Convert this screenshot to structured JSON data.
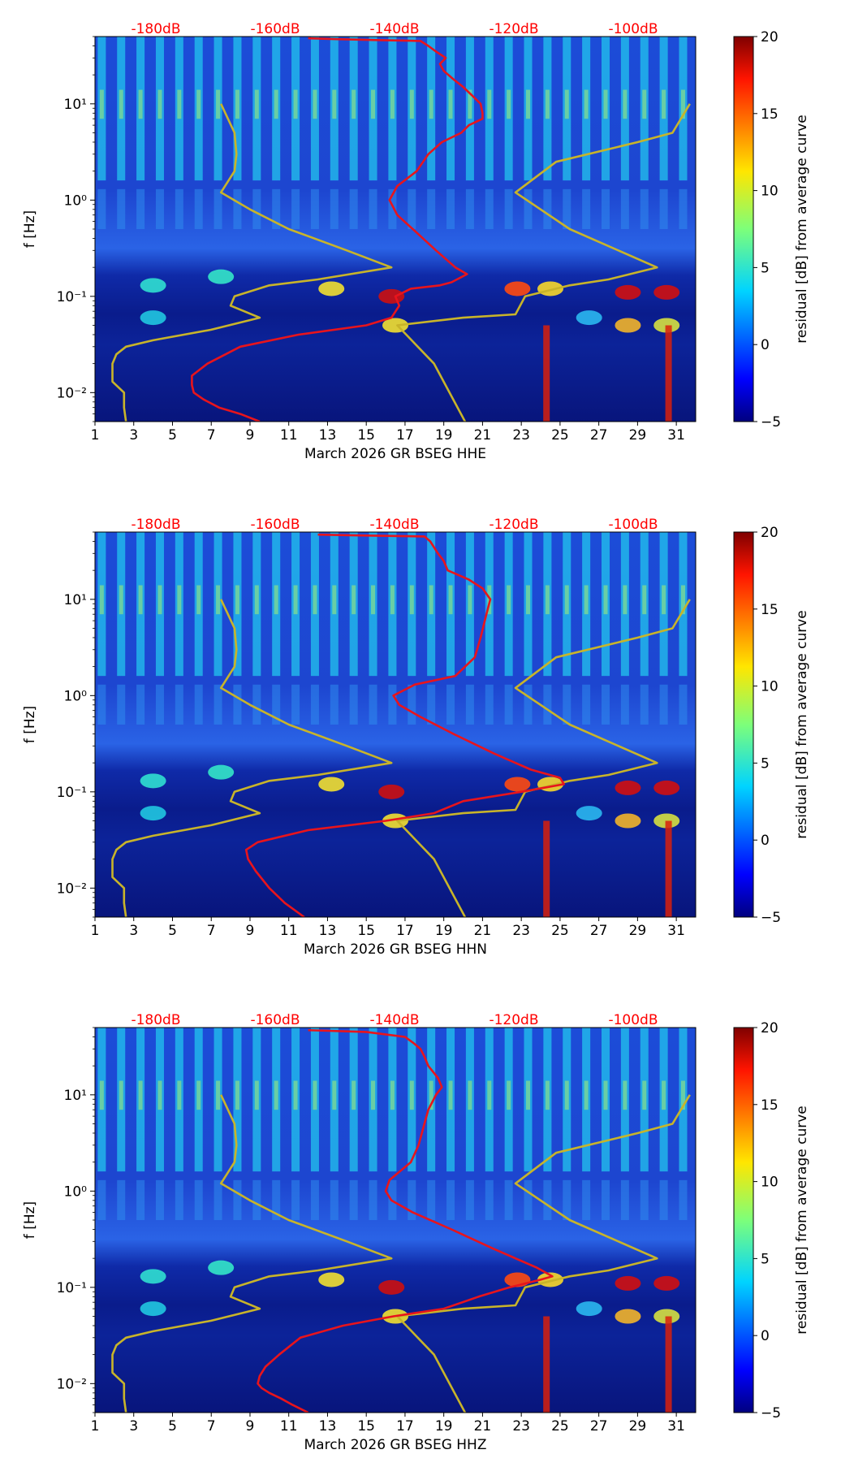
{
  "chart_data": [
    {
      "type": "heatmap",
      "channel_label": "March 2026 GR BSEG  HHE",
      "ylabel": "f [Hz]",
      "x_ticks": [
        "1",
        "3",
        "5",
        "7",
        "9",
        "11",
        "13",
        "15",
        "17",
        "19",
        "21",
        "23",
        "25",
        "27",
        "29",
        "31"
      ],
      "x_range": [
        1,
        32
      ],
      "y_ticks": [
        {
          "label": "10⁻²",
          "value": 0.01
        },
        {
          "label": "10⁻¹",
          "value": 0.1
        },
        {
          "label": "10⁰",
          "value": 1
        },
        {
          "label": "10¹",
          "value": 10
        }
      ],
      "y_range": [
        0.005,
        50
      ],
      "top_db_labels": [
        "-180dB",
        "-160dB",
        "-140dB",
        "-120dB",
        "-100dB"
      ],
      "colorbar": {
        "label": "residual [dB] from average curve",
        "ticks": [
          "−5",
          "0",
          "5",
          "10",
          "15",
          "20"
        ],
        "range": [
          -5,
          20
        ]
      },
      "red_curve": {
        "points": [
          [
            9.5,
            0.005
          ],
          [
            8.5,
            0.006
          ],
          [
            7.4,
            0.007
          ],
          [
            6.6,
            0.0085
          ],
          [
            6.1,
            0.01
          ],
          [
            6.0,
            0.012
          ],
          [
            6.0,
            0.015
          ],
          [
            6.8,
            0.02
          ],
          [
            8.5,
            0.03
          ],
          [
            11.5,
            0.04
          ],
          [
            15,
            0.05
          ],
          [
            16.3,
            0.06
          ],
          [
            16.7,
            0.08
          ],
          [
            16.5,
            0.1
          ],
          [
            17.3,
            0.12
          ],
          [
            18.8,
            0.13
          ],
          [
            19.4,
            0.14
          ],
          [
            20.2,
            0.17
          ],
          [
            19.6,
            0.2
          ],
          [
            18.6,
            0.3
          ],
          [
            17.4,
            0.5
          ],
          [
            16.6,
            0.7
          ],
          [
            16.2,
            1
          ],
          [
            16.6,
            1.4
          ],
          [
            17.6,
            2
          ],
          [
            18.2,
            3
          ],
          [
            18.9,
            4
          ],
          [
            19.9,
            5
          ],
          [
            20.3,
            6
          ],
          [
            21.0,
            7
          ],
          [
            21.0,
            8
          ],
          [
            20.9,
            10
          ],
          [
            20.5,
            12
          ],
          [
            20.0,
            15
          ],
          [
            19.5,
            18
          ],
          [
            19.0,
            22
          ],
          [
            18.8,
            26
          ],
          [
            19.1,
            30
          ],
          [
            18.6,
            35
          ],
          [
            18.2,
            40
          ],
          [
            17.8,
            45
          ],
          [
            15.5,
            46
          ],
          [
            13.5,
            47
          ],
          [
            12.0,
            48
          ]
        ]
      },
      "yellow_curves": [
        {
          "points": [
            [
              2.6,
              0.005
            ],
            [
              2.5,
              0.007
            ],
            [
              2.5,
              0.01
            ],
            [
              1.9,
              0.013
            ],
            [
              1.9,
              0.02
            ],
            [
              2.1,
              0.025
            ],
            [
              2.6,
              0.03
            ],
            [
              4,
              0.035
            ],
            [
              7,
              0.045
            ],
            [
              9.5,
              0.06
            ],
            [
              8.0,
              0.08
            ],
            [
              8.2,
              0.1
            ],
            [
              10.0,
              0.13
            ],
            [
              12.5,
              0.15
            ],
            [
              16.3,
              0.2
            ],
            [
              14,
              0.3
            ],
            [
              11,
              0.5
            ],
            [
              9,
              0.8
            ],
            [
              7.5,
              1.2
            ],
            [
              8.2,
              2
            ],
            [
              8.3,
              3
            ],
            [
              8.2,
              5
            ],
            [
              7.5,
              10
            ]
          ]
        },
        {
          "points": [
            [
              20.1,
              0.005
            ],
            [
              18.5,
              0.02
            ],
            [
              16.6,
              0.05
            ],
            [
              20,
              0.06
            ],
            [
              22.7,
              0.065
            ],
            [
              23.2,
              0.1
            ],
            [
              25.5,
              0.13
            ],
            [
              27.5,
              0.15
            ],
            [
              30,
              0.2
            ],
            [
              25.5,
              0.5
            ],
            [
              22.7,
              1.2
            ],
            [
              24.8,
              2.5
            ],
            [
              29,
              4
            ],
            [
              30.8,
              5
            ],
            [
              31.7,
              10
            ]
          ]
        }
      ]
    },
    {
      "type": "heatmap",
      "channel_label": "March 2026 GR BSEG  HHN",
      "ylabel": "f [Hz]",
      "x_ticks": [
        "1",
        "3",
        "5",
        "7",
        "9",
        "11",
        "13",
        "15",
        "17",
        "19",
        "21",
        "23",
        "25",
        "27",
        "29",
        "31"
      ],
      "x_range": [
        1,
        32
      ],
      "y_ticks": [
        {
          "label": "10⁻²",
          "value": 0.01
        },
        {
          "label": "10⁻¹",
          "value": 0.1
        },
        {
          "label": "10⁰",
          "value": 1
        },
        {
          "label": "10¹",
          "value": 10
        }
      ],
      "y_range": [
        0.005,
        50
      ],
      "top_db_labels": [
        "-180dB",
        "-160dB",
        "-140dB",
        "-120dB",
        "-100dB"
      ],
      "colorbar": {
        "label": "residual [dB] from average curve",
        "ticks": [
          "−5",
          "0",
          "5",
          "10",
          "15",
          "20"
        ],
        "range": [
          -5,
          20
        ]
      },
      "red_curve": {
        "points": [
          [
            11.8,
            0.005
          ],
          [
            10.8,
            0.007
          ],
          [
            10.0,
            0.01
          ],
          [
            9.3,
            0.015
          ],
          [
            8.9,
            0.02
          ],
          [
            8.8,
            0.025
          ],
          [
            9.4,
            0.03
          ],
          [
            12,
            0.04
          ],
          [
            16,
            0.05
          ],
          [
            18.5,
            0.06
          ],
          [
            20,
            0.08
          ],
          [
            23.0,
            0.1
          ],
          [
            25.2,
            0.12
          ],
          [
            25.0,
            0.14
          ],
          [
            23.5,
            0.17
          ],
          [
            21.6,
            0.25
          ],
          [
            19.5,
            0.4
          ],
          [
            17.8,
            0.6
          ],
          [
            16.7,
            0.8
          ],
          [
            16.4,
            1
          ],
          [
            17.5,
            1.3
          ],
          [
            19.6,
            1.6
          ],
          [
            20.6,
            2.5
          ],
          [
            20.9,
            4
          ],
          [
            21.2,
            7
          ],
          [
            21.4,
            10
          ],
          [
            21.0,
            13
          ],
          [
            20.3,
            16
          ],
          [
            19.2,
            20
          ],
          [
            19.0,
            25
          ],
          [
            18.7,
            30
          ],
          [
            18.3,
            40
          ],
          [
            18.0,
            45
          ],
          [
            15.0,
            46
          ],
          [
            12.5,
            47
          ]
        ]
      },
      "yellow_curves": [
        {
          "points": [
            [
              2.6,
              0.005
            ],
            [
              2.5,
              0.007
            ],
            [
              2.5,
              0.01
            ],
            [
              1.9,
              0.013
            ],
            [
              1.9,
              0.02
            ],
            [
              2.1,
              0.025
            ],
            [
              2.6,
              0.03
            ],
            [
              4,
              0.035
            ],
            [
              7,
              0.045
            ],
            [
              9.5,
              0.06
            ],
            [
              8.0,
              0.08
            ],
            [
              8.2,
              0.1
            ],
            [
              10.0,
              0.13
            ],
            [
              12.5,
              0.15
            ],
            [
              16.3,
              0.2
            ],
            [
              14,
              0.3
            ],
            [
              11,
              0.5
            ],
            [
              9,
              0.8
            ],
            [
              7.5,
              1.2
            ],
            [
              8.2,
              2
            ],
            [
              8.3,
              3
            ],
            [
              8.2,
              5
            ],
            [
              7.5,
              10
            ]
          ]
        },
        {
          "points": [
            [
              20.1,
              0.005
            ],
            [
              18.5,
              0.02
            ],
            [
              16.6,
              0.05
            ],
            [
              20,
              0.06
            ],
            [
              22.7,
              0.065
            ],
            [
              23.2,
              0.1
            ],
            [
              25.5,
              0.13
            ],
            [
              27.5,
              0.15
            ],
            [
              30,
              0.2
            ],
            [
              25.5,
              0.5
            ],
            [
              22.7,
              1.2
            ],
            [
              24.8,
              2.5
            ],
            [
              29,
              4
            ],
            [
              30.8,
              5
            ],
            [
              31.7,
              10
            ]
          ]
        }
      ]
    },
    {
      "type": "heatmap",
      "channel_label": "March 2026 GR BSEG  HHZ",
      "ylabel": "f [Hz]",
      "x_ticks": [
        "1",
        "3",
        "5",
        "7",
        "9",
        "11",
        "13",
        "15",
        "17",
        "19",
        "21",
        "23",
        "25",
        "27",
        "29",
        "31"
      ],
      "x_range": [
        1,
        32
      ],
      "y_ticks": [
        {
          "label": "10⁻²",
          "value": 0.01
        },
        {
          "label": "10⁻¹",
          "value": 0.1
        },
        {
          "label": "10⁰",
          "value": 1
        },
        {
          "label": "10¹",
          "value": 10
        }
      ],
      "y_range": [
        0.005,
        50
      ],
      "top_db_labels": [
        "-180dB",
        "-160dB",
        "-140dB",
        "-120dB",
        "-100dB"
      ],
      "colorbar": {
        "label": "residual [dB] from average curve",
        "ticks": [
          "−5",
          "0",
          "5",
          "10",
          "15",
          "20"
        ],
        "range": [
          -5,
          20
        ]
      },
      "red_curve": {
        "points": [
          [
            12.0,
            0.005
          ],
          [
            11.2,
            0.006
          ],
          [
            10.6,
            0.007
          ],
          [
            10.0,
            0.008
          ],
          [
            9.6,
            0.009
          ],
          [
            9.4,
            0.01
          ],
          [
            9.5,
            0.012
          ],
          [
            9.8,
            0.015
          ],
          [
            10.5,
            0.02
          ],
          [
            11.6,
            0.03
          ],
          [
            13.8,
            0.04
          ],
          [
            16.4,
            0.05
          ],
          [
            19,
            0.06
          ],
          [
            20.8,
            0.08
          ],
          [
            22.4,
            0.1
          ],
          [
            24.0,
            0.12
          ],
          [
            24.6,
            0.13
          ],
          [
            23.8,
            0.16
          ],
          [
            21.6,
            0.25
          ],
          [
            19.4,
            0.4
          ],
          [
            17.4,
            0.6
          ],
          [
            16.3,
            0.8
          ],
          [
            16.0,
            1
          ],
          [
            16.2,
            1.3
          ],
          [
            17.3,
            2
          ],
          [
            17.7,
            3
          ],
          [
            18.0,
            5
          ],
          [
            18.2,
            7
          ],
          [
            18.6,
            10
          ],
          [
            18.9,
            12
          ],
          [
            18.7,
            15
          ],
          [
            18.2,
            20
          ],
          [
            18.0,
            25
          ],
          [
            17.8,
            30
          ],
          [
            17.4,
            35
          ],
          [
            17.0,
            40
          ],
          [
            15.0,
            45
          ],
          [
            12.0,
            47
          ]
        ]
      },
      "yellow_curves": [
        {
          "points": [
            [
              2.6,
              0.005
            ],
            [
              2.5,
              0.007
            ],
            [
              2.5,
              0.01
            ],
            [
              1.9,
              0.013
            ],
            [
              1.9,
              0.02
            ],
            [
              2.1,
              0.025
            ],
            [
              2.6,
              0.03
            ],
            [
              4,
              0.035
            ],
            [
              7,
              0.045
            ],
            [
              9.5,
              0.06
            ],
            [
              8.0,
              0.08
            ],
            [
              8.2,
              0.1
            ],
            [
              10.0,
              0.13
            ],
            [
              12.5,
              0.15
            ],
            [
              16.3,
              0.2
            ],
            [
              14,
              0.3
            ],
            [
              11,
              0.5
            ],
            [
              9,
              0.8
            ],
            [
              7.5,
              1.2
            ],
            [
              8.2,
              2
            ],
            [
              8.3,
              3
            ],
            [
              8.2,
              5
            ],
            [
              7.5,
              10
            ]
          ]
        },
        {
          "points": [
            [
              20.1,
              0.005
            ],
            [
              18.5,
              0.02
            ],
            [
              16.6,
              0.05
            ],
            [
              20,
              0.06
            ],
            [
              22.7,
              0.065
            ],
            [
              23.2,
              0.1
            ],
            [
              25.5,
              0.13
            ],
            [
              27.5,
              0.15
            ],
            [
              30,
              0.2
            ],
            [
              25.5,
              0.5
            ],
            [
              22.7,
              1.2
            ],
            [
              24.8,
              2.5
            ],
            [
              29,
              4
            ],
            [
              30.8,
              5
            ],
            [
              31.7,
              10
            ]
          ]
        }
      ]
    }
  ],
  "colors": {
    "red_curve": "#e8141c",
    "yellow_curve": "#c8b42a",
    "db_label": "#ff0000",
    "background": "#ffffff",
    "axis": "#000000"
  }
}
